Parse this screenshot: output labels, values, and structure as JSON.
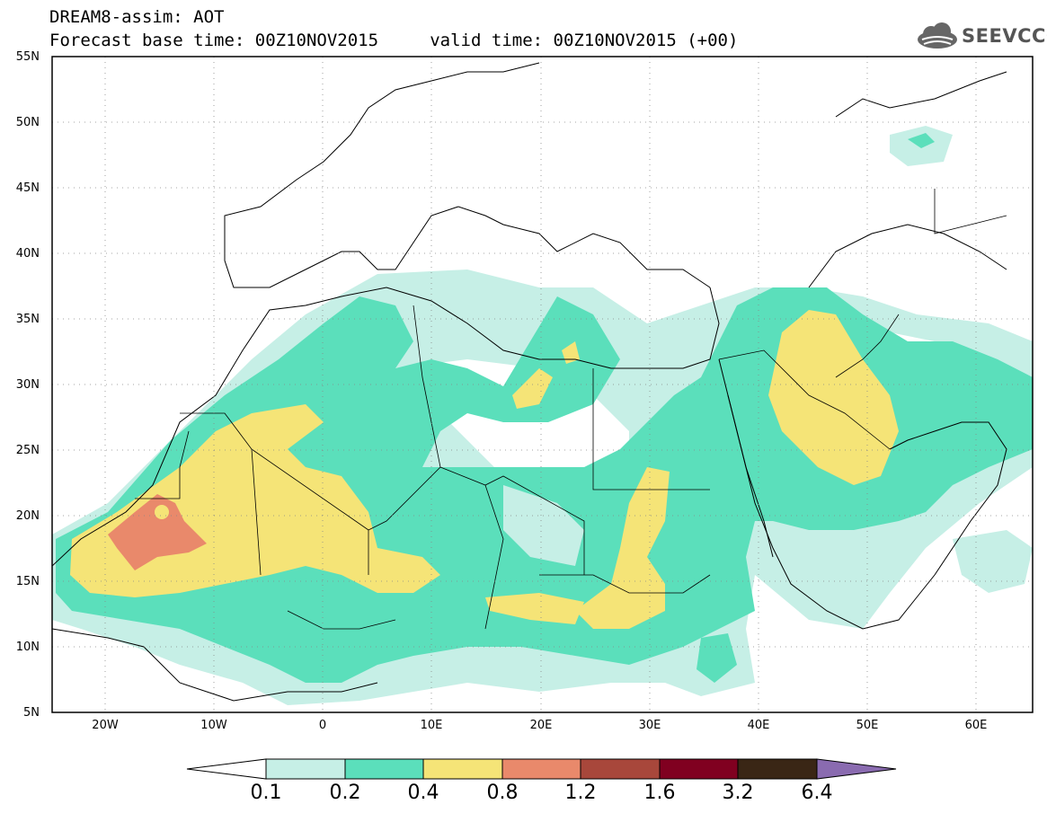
{
  "header": {
    "title_line1": "DREAM8-assim: AOT",
    "title_line2": "Forecast base time: 00Z10NOV2015     valid time: 00Z10NOV2015 (+00)"
  },
  "logo": {
    "icon": "cloud-icon",
    "text": "SEEVCCC"
  },
  "axes": {
    "lat_labels": [
      "55N",
      "50N",
      "45N",
      "40N",
      "35N",
      "30N",
      "25N",
      "20N",
      "15N",
      "10N",
      "5N"
    ],
    "lon_labels": [
      "20W",
      "10W",
      "0",
      "10E",
      "20E",
      "30E",
      "40E",
      "50E",
      "60E"
    ]
  },
  "map": {
    "lon_range": [
      -25,
      65
    ],
    "lat_range": [
      5,
      55
    ],
    "variable": "AOT"
  },
  "colorbar": {
    "levels": [
      "0.1",
      "0.2",
      "0.4",
      "0.8",
      "1.2",
      "1.6",
      "3.2",
      "6.4"
    ],
    "colors": [
      "#ffffff",
      "#c6efe6",
      "#5bdfbb",
      "#f5e477",
      "#e9896b",
      "#a8473b",
      "#800020",
      "#3a2615",
      "#8a6bb0"
    ]
  },
  "colors": {
    "aot_0_1": "#c6efe6",
    "aot_0_2": "#5bdfbb",
    "aot_0_4": "#f5e477",
    "aot_0_8": "#e9896b"
  }
}
